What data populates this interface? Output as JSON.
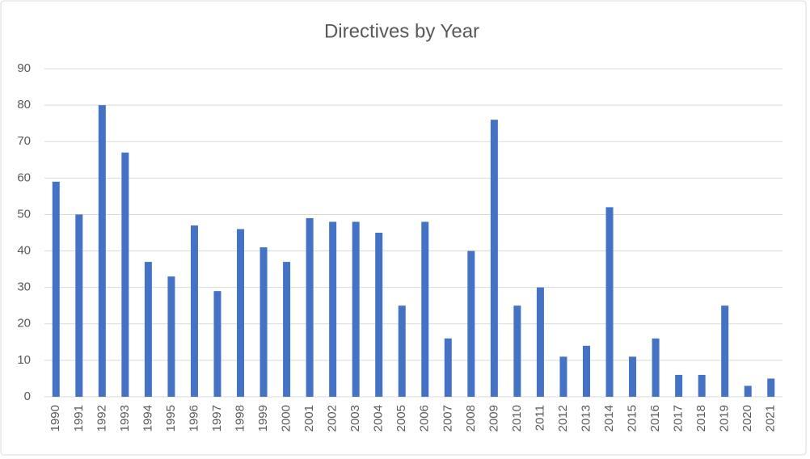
{
  "chart_data": {
    "type": "bar",
    "title": "Directives by Year",
    "categories": [
      "1990",
      "1991",
      "1992",
      "1993",
      "1994",
      "1995",
      "1996",
      "1997",
      "1998",
      "1999",
      "2000",
      "2001",
      "2002",
      "2003",
      "2004",
      "2005",
      "2006",
      "2007",
      "2008",
      "2009",
      "2010",
      "2011",
      "2012",
      "2013",
      "2014",
      "2015",
      "2016",
      "2017",
      "2018",
      "2019",
      "2020",
      "2021"
    ],
    "values": [
      59,
      50,
      80,
      67,
      37,
      33,
      47,
      29,
      46,
      41,
      37,
      49,
      48,
      48,
      45,
      25,
      48,
      16,
      40,
      76,
      25,
      30,
      11,
      14,
      52,
      11,
      16,
      6,
      6,
      25,
      3,
      5
    ],
    "color": "#4472c4",
    "ylim": [
      0,
      90
    ],
    "yticks": [
      0,
      10,
      20,
      30,
      40,
      50,
      60,
      70,
      80,
      90
    ],
    "grid": true
  }
}
